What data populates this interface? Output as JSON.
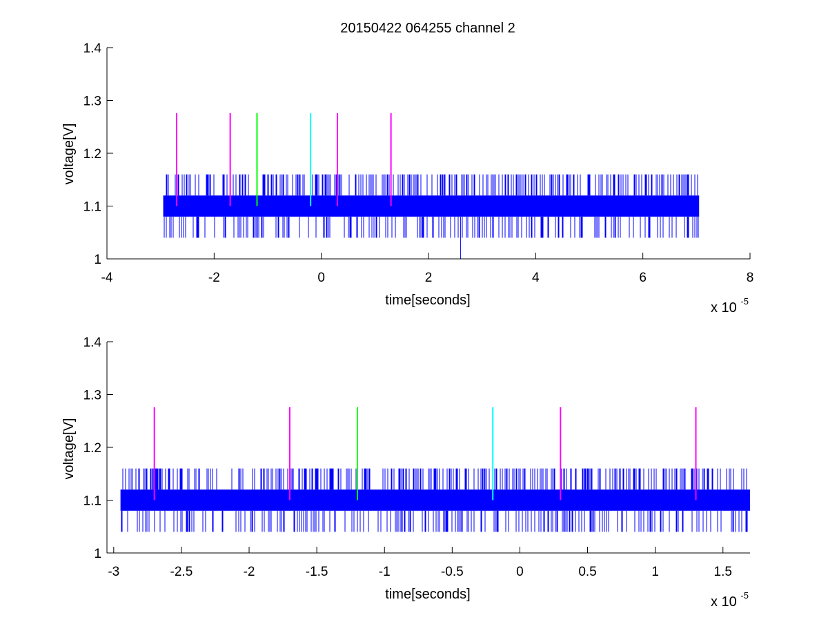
{
  "title": "20150422 064255 channel 2",
  "colors": {
    "signal": "#0000ff",
    "axis": "#000000",
    "magenta": "#ff00ff",
    "green": "#00ff00",
    "cyan": "#00ffff"
  },
  "chart_data": [
    {
      "type": "line",
      "xlabel": "time[seconds]",
      "ylabel": "voltage[V]",
      "xlim": [
        -4,
        8
      ],
      "ylim": [
        1,
        1.4
      ],
      "x_exponent_label": "x 10",
      "x_exponent_power": "-5",
      "xticks": [
        -4,
        -2,
        0,
        2,
        4,
        6,
        8
      ],
      "xtick_labels": [
        "-4",
        "-2",
        "0",
        "2",
        "4",
        "6",
        "8"
      ],
      "yticks": [
        1,
        1.1,
        1.2,
        1.3,
        1.4
      ],
      "ytick_labels": [
        "1",
        "1.1",
        "1.2",
        "1.3",
        "1.4"
      ],
      "grid": false,
      "series": [
        {
          "values_summary": {
            "x_range": [
              -2.95,
              7.05
            ],
            "band": [
              1.08,
              1.12
            ],
            "spike_high": 1.16,
            "spike_low": 1.04,
            "outlier": {
              "x": 2.6,
              "y": 1.0
            }
          }
        }
      ],
      "markers": [
        {
          "x": -2.7,
          "y": [
            1.1,
            1.276
          ],
          "color": "magenta"
        },
        {
          "x": -1.7,
          "y": [
            1.1,
            1.276
          ],
          "color": "magenta"
        },
        {
          "x": -1.2,
          "y": [
            1.1,
            1.276
          ],
          "color": "green"
        },
        {
          "x": -0.2,
          "y": [
            1.1,
            1.276
          ],
          "color": "cyan"
        },
        {
          "x": 0.3,
          "y": [
            1.1,
            1.276
          ],
          "color": "magenta"
        },
        {
          "x": 1.3,
          "y": [
            1.1,
            1.276
          ],
          "color": "magenta"
        }
      ]
    },
    {
      "type": "line",
      "xlabel": "time[seconds]",
      "ylabel": "voltage[V]",
      "xlim": [
        -3.05,
        1.7
      ],
      "ylim": [
        1,
        1.4
      ],
      "x_exponent_label": "x 10",
      "x_exponent_power": "-5",
      "xticks": [
        -3,
        -2.5,
        -2,
        -1.5,
        -1,
        -0.5,
        0,
        0.5,
        1,
        1.5
      ],
      "xtick_labels": [
        "-3",
        "-2.5",
        "-2",
        "-1.5",
        "-1",
        "-0.5",
        "0",
        "0.5",
        "1",
        "1.5"
      ],
      "yticks": [
        1,
        1.1,
        1.2,
        1.3,
        1.4
      ],
      "ytick_labels": [
        "1",
        "1.1",
        "1.2",
        "1.3",
        "1.4"
      ],
      "grid": false,
      "series": [
        {
          "values_summary": {
            "x_range": [
              -2.95,
              1.7
            ],
            "band": [
              1.08,
              1.12
            ],
            "spike_high": 1.16,
            "spike_low": 1.04
          }
        }
      ],
      "markers": [
        {
          "x": -2.7,
          "y": [
            1.1,
            1.276
          ],
          "color": "magenta"
        },
        {
          "x": -1.7,
          "y": [
            1.1,
            1.276
          ],
          "color": "magenta"
        },
        {
          "x": -1.2,
          "y": [
            1.1,
            1.276
          ],
          "color": "green"
        },
        {
          "x": -0.2,
          "y": [
            1.1,
            1.276
          ],
          "color": "cyan"
        },
        {
          "x": 0.3,
          "y": [
            1.1,
            1.276
          ],
          "color": "magenta"
        },
        {
          "x": 1.3,
          "y": [
            1.1,
            1.276
          ],
          "color": "magenta"
        }
      ]
    }
  ]
}
